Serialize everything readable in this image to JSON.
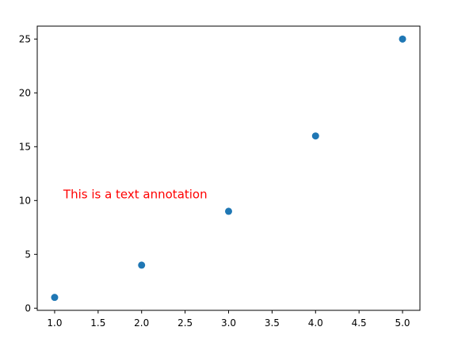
{
  "chart_data": {
    "type": "scatter",
    "title": "",
    "xlabel": "",
    "ylabel": "",
    "xlim": [
      0.8,
      5.2
    ],
    "ylim": [
      -0.2,
      26.2
    ],
    "x_ticks": [
      1.0,
      1.5,
      2.0,
      2.5,
      3.0,
      3.5,
      4.0,
      4.5,
      5.0
    ],
    "x_tick_labels": [
      "1.0",
      "1.5",
      "2.0",
      "2.5",
      "3.0",
      "3.5",
      "4.0",
      "4.5",
      "5.0"
    ],
    "y_ticks": [
      0,
      5,
      10,
      15,
      20,
      25
    ],
    "y_tick_labels": [
      "0",
      "5",
      "10",
      "15",
      "20",
      "25"
    ],
    "x": [
      1,
      2,
      3,
      4,
      5
    ],
    "y": [
      1,
      4,
      9,
      16,
      25
    ],
    "grid": false,
    "marker_color": "#1f77b4",
    "annotations": [
      {
        "text": "This is a text annotation",
        "x": 1.1,
        "y": 10.2,
        "color": "#ff0000"
      }
    ]
  }
}
